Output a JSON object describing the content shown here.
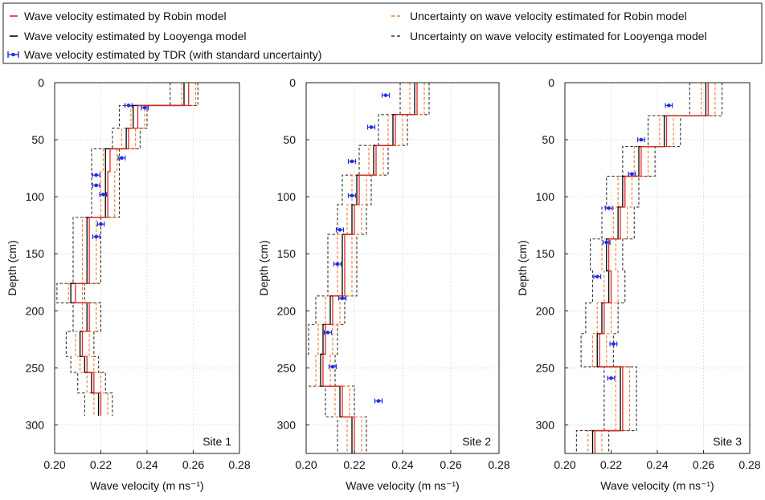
{
  "colors": {
    "robin": "#e0281c",
    "robin_uncertainty": "#f07830",
    "looyenga": "#000000",
    "looyenga_uncertainty": "#333333",
    "tdr": "#1f2ee0",
    "grid": "#cfcfcf"
  },
  "legend": {
    "placement": "top",
    "items": [
      {
        "key": "robin",
        "label": "Wave velocity estimated by Robin model"
      },
      {
        "key": "looyenga",
        "label": "Wave velocity estimated by Looyenga model"
      },
      {
        "key": "tdr",
        "label": "Wave velocity estimated by TDR (with standard uncertainty)"
      },
      {
        "key": "robin_uncertainty",
        "label": "Uncertainty on wave velocity estimated for Robin model"
      },
      {
        "key": "looyenga_uncertainty",
        "label": "Uncertainty on wave velocity estimated for Looyenga model"
      }
    ]
  },
  "chart_data": [
    {
      "type": "line",
      "site_label": "Site 1",
      "xlabel": "Wave velocity (m ns⁻¹)",
      "ylabel": "Depth (cm)",
      "xlim": [
        0.2,
        0.28
      ],
      "ylim": [
        0,
        325
      ],
      "y_inverted": true,
      "grid": true,
      "xticks": [
        "0.20",
        "0.22",
        "0.24",
        "0.26",
        "0.28"
      ],
      "yticks": [
        "0",
        "50",
        "100",
        "150",
        "200",
        "250",
        "300"
      ],
      "layers": [
        {
          "top": 0,
          "bottom": 20,
          "robin": 0.258,
          "looyenga": 0.256,
          "r_unc": 0.003,
          "l_unc": 0.006
        },
        {
          "top": 20,
          "bottom": 40,
          "robin": 0.236,
          "looyenga": 0.234,
          "r_unc": 0.003,
          "l_unc": 0.006
        },
        {
          "top": 40,
          "bottom": 58,
          "robin": 0.232,
          "looyenga": 0.231,
          "r_unc": 0.003,
          "l_unc": 0.006
        },
        {
          "top": 58,
          "bottom": 78,
          "robin": 0.224,
          "looyenga": 0.222,
          "r_unc": 0.003,
          "l_unc": 0.006
        },
        {
          "top": 78,
          "bottom": 118,
          "robin": 0.223,
          "looyenga": 0.222,
          "r_unc": 0.003,
          "l_unc": 0.006
        },
        {
          "top": 118,
          "bottom": 147,
          "robin": 0.215,
          "looyenga": 0.214,
          "r_unc": 0.003,
          "l_unc": 0.006
        },
        {
          "top": 147,
          "bottom": 176,
          "robin": 0.215,
          "looyenga": 0.214,
          "r_unc": 0.003,
          "l_unc": 0.006
        },
        {
          "top": 176,
          "bottom": 193,
          "robin": 0.209,
          "looyenga": 0.207,
          "r_unc": 0.003,
          "l_unc": 0.006
        },
        {
          "top": 193,
          "bottom": 218,
          "robin": 0.215,
          "looyenga": 0.214,
          "r_unc": 0.003,
          "l_unc": 0.006
        },
        {
          "top": 218,
          "bottom": 240,
          "robin": 0.212,
          "looyenga": 0.211,
          "r_unc": 0.003,
          "l_unc": 0.006
        },
        {
          "top": 240,
          "bottom": 254,
          "robin": 0.214,
          "looyenga": 0.213,
          "r_unc": 0.003,
          "l_unc": 0.006
        },
        {
          "top": 254,
          "bottom": 272,
          "robin": 0.217,
          "looyenga": 0.216,
          "r_unc": 0.003,
          "l_unc": 0.006
        },
        {
          "top": 272,
          "bottom": 292,
          "robin": 0.22,
          "looyenga": 0.219,
          "r_unc": 0.003,
          "l_unc": 0.006
        }
      ],
      "tdr": [
        {
          "depth": 20,
          "velocity": 0.232,
          "err": 0.0015
        },
        {
          "depth": 22,
          "velocity": 0.239,
          "err": 0.0015
        },
        {
          "depth": 66,
          "velocity": 0.229,
          "err": 0.0015
        },
        {
          "depth": 81,
          "velocity": 0.218,
          "err": 0.0015
        },
        {
          "depth": 90,
          "velocity": 0.218,
          "err": 0.0015
        },
        {
          "depth": 98,
          "velocity": 0.221,
          "err": 0.0015
        },
        {
          "depth": 124,
          "velocity": 0.22,
          "err": 0.0015
        },
        {
          "depth": 135,
          "velocity": 0.218,
          "err": 0.0015
        }
      ]
    },
    {
      "type": "line",
      "site_label": "Site 2",
      "xlabel": "Wave velocity (m ns⁻¹)",
      "ylabel": "Depth (cm)",
      "xlim": [
        0.2,
        0.28
      ],
      "ylim": [
        0,
        325
      ],
      "y_inverted": true,
      "grid": true,
      "xticks": [
        "0.20",
        "0.22",
        "0.24",
        "0.26",
        "0.28"
      ],
      "yticks": [
        "0",
        "50",
        "100",
        "150",
        "200",
        "250",
        "300"
      ],
      "layers": [
        {
          "top": 0,
          "bottom": 28,
          "robin": 0.246,
          "looyenga": 0.245,
          "r_unc": 0.003,
          "l_unc": 0.006
        },
        {
          "top": 28,
          "bottom": 55,
          "robin": 0.237,
          "looyenga": 0.236,
          "r_unc": 0.003,
          "l_unc": 0.006
        },
        {
          "top": 55,
          "bottom": 81,
          "robin": 0.229,
          "looyenga": 0.228,
          "r_unc": 0.003,
          "l_unc": 0.006
        },
        {
          "top": 81,
          "bottom": 107,
          "robin": 0.222,
          "looyenga": 0.221,
          "r_unc": 0.003,
          "l_unc": 0.006
        },
        {
          "top": 107,
          "bottom": 133,
          "robin": 0.22,
          "looyenga": 0.219,
          "r_unc": 0.003,
          "l_unc": 0.006
        },
        {
          "top": 133,
          "bottom": 187,
          "robin": 0.216,
          "looyenga": 0.215,
          "r_unc": 0.003,
          "l_unc": 0.006
        },
        {
          "top": 187,
          "bottom": 212,
          "robin": 0.211,
          "looyenga": 0.21,
          "r_unc": 0.003,
          "l_unc": 0.006
        },
        {
          "top": 212,
          "bottom": 238,
          "robin": 0.208,
          "looyenga": 0.207,
          "r_unc": 0.003,
          "l_unc": 0.006
        },
        {
          "top": 238,
          "bottom": 266,
          "robin": 0.207,
          "looyenga": 0.206,
          "r_unc": 0.003,
          "l_unc": 0.006
        },
        {
          "top": 266,
          "bottom": 293,
          "robin": 0.215,
          "looyenga": 0.214,
          "r_unc": 0.003,
          "l_unc": 0.006
        },
        {
          "top": 293,
          "bottom": 325,
          "robin": 0.22,
          "looyenga": 0.219,
          "r_unc": 0.003,
          "l_unc": 0.006
        }
      ],
      "tdr": [
        {
          "depth": 11,
          "velocity": 0.233,
          "err": 0.0015
        },
        {
          "depth": 39,
          "velocity": 0.227,
          "err": 0.0015
        },
        {
          "depth": 69,
          "velocity": 0.219,
          "err": 0.0015
        },
        {
          "depth": 99,
          "velocity": 0.219,
          "err": 0.0015
        },
        {
          "depth": 129,
          "velocity": 0.214,
          "err": 0.0015
        },
        {
          "depth": 159,
          "velocity": 0.213,
          "err": 0.0015
        },
        {
          "depth": 189,
          "velocity": 0.215,
          "err": 0.0015
        },
        {
          "depth": 219,
          "velocity": 0.209,
          "err": 0.0015
        },
        {
          "depth": 249,
          "velocity": 0.211,
          "err": 0.0015
        },
        {
          "depth": 279,
          "velocity": 0.23,
          "err": 0.0015
        }
      ]
    },
    {
      "type": "line",
      "site_label": "Site 3",
      "xlabel": "Wave velocity (m ns⁻¹)",
      "ylabel": "Depth (cm)",
      "xlim": [
        0.2,
        0.28
      ],
      "ylim": [
        0,
        325
      ],
      "y_inverted": true,
      "grid": true,
      "xticks": [
        "0.20",
        "0.22",
        "0.24",
        "0.26",
        "0.28"
      ],
      "yticks": [
        "0",
        "50",
        "100",
        "150",
        "200",
        "250",
        "300"
      ],
      "layers": [
        {
          "top": 0,
          "bottom": 29,
          "robin": 0.262,
          "looyenga": 0.261,
          "r_unc": 0.003,
          "l_unc": 0.007
        },
        {
          "top": 29,
          "bottom": 56,
          "robin": 0.244,
          "looyenga": 0.243,
          "r_unc": 0.003,
          "l_unc": 0.007
        },
        {
          "top": 56,
          "bottom": 82,
          "robin": 0.233,
          "looyenga": 0.232,
          "r_unc": 0.003,
          "l_unc": 0.007
        },
        {
          "top": 82,
          "bottom": 109,
          "robin": 0.226,
          "looyenga": 0.225,
          "r_unc": 0.003,
          "l_unc": 0.007
        },
        {
          "top": 109,
          "bottom": 137,
          "robin": 0.224,
          "looyenga": 0.223,
          "r_unc": 0.003,
          "l_unc": 0.007
        },
        {
          "top": 137,
          "bottom": 165,
          "robin": 0.219,
          "looyenga": 0.218,
          "r_unc": 0.003,
          "l_unc": 0.007
        },
        {
          "top": 165,
          "bottom": 193,
          "robin": 0.22,
          "looyenga": 0.219,
          "r_unc": 0.003,
          "l_unc": 0.007
        },
        {
          "top": 193,
          "bottom": 220,
          "robin": 0.217,
          "looyenga": 0.216,
          "r_unc": 0.003,
          "l_unc": 0.007
        },
        {
          "top": 220,
          "bottom": 249,
          "robin": 0.215,
          "looyenga": 0.214,
          "r_unc": 0.003,
          "l_unc": 0.007
        },
        {
          "top": 249,
          "bottom": 277,
          "robin": 0.225,
          "looyenga": 0.224,
          "r_unc": 0.003,
          "l_unc": 0.007
        },
        {
          "top": 277,
          "bottom": 305,
          "robin": 0.225,
          "looyenga": 0.224,
          "r_unc": 0.003,
          "l_unc": 0.007
        },
        {
          "top": 305,
          "bottom": 325,
          "robin": 0.213,
          "looyenga": 0.212,
          "r_unc": 0.003,
          "l_unc": 0.007
        }
      ],
      "tdr": [
        {
          "depth": 20,
          "velocity": 0.245,
          "err": 0.0015
        },
        {
          "depth": 50,
          "velocity": 0.233,
          "err": 0.0015
        },
        {
          "depth": 80,
          "velocity": 0.229,
          "err": 0.0015
        },
        {
          "depth": 110,
          "velocity": 0.219,
          "err": 0.0015
        },
        {
          "depth": 140,
          "velocity": 0.218,
          "err": 0.0015
        },
        {
          "depth": 170,
          "velocity": 0.214,
          "err": 0.0015
        },
        {
          "depth": 229,
          "velocity": 0.221,
          "err": 0.0015
        },
        {
          "depth": 259,
          "velocity": 0.22,
          "err": 0.0015
        }
      ]
    }
  ]
}
